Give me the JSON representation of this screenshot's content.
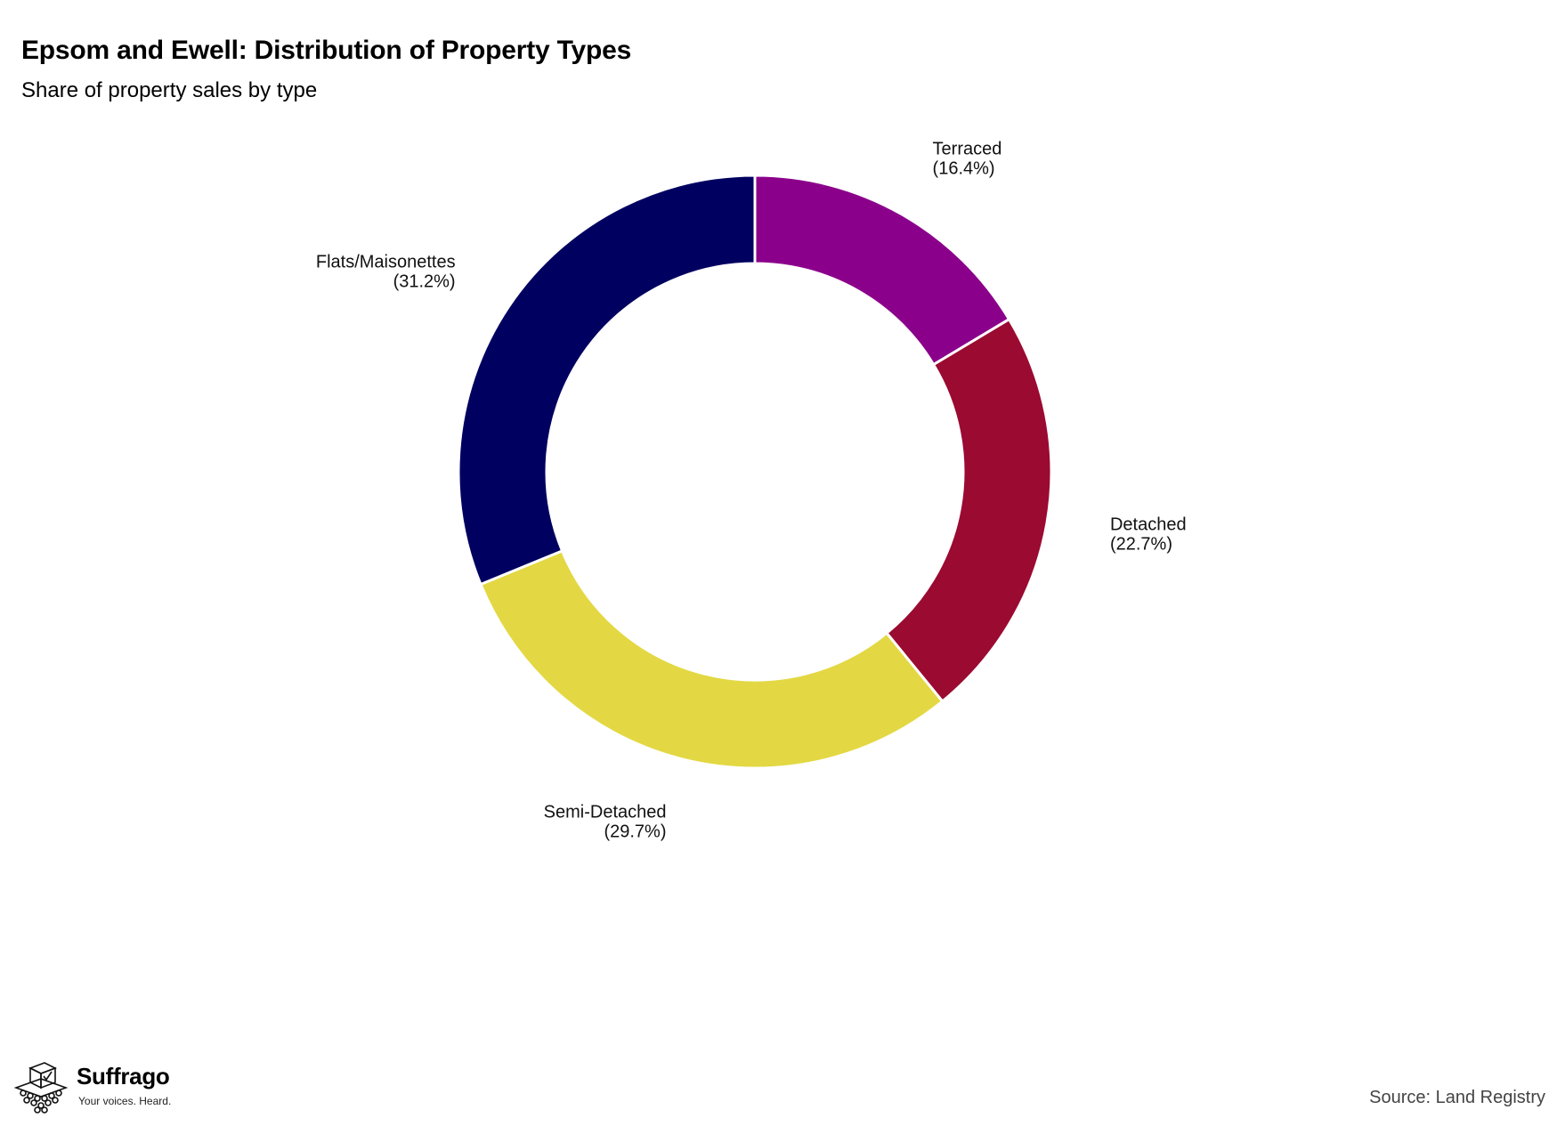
{
  "header": {
    "title": "Epsom and Ewell: Distribution of Property Types",
    "subtitle": "Share of property sales by type"
  },
  "footer": {
    "source": "Source: Land Registry",
    "brand_name": "Suffrago",
    "brand_tagline": "Your voices. Heard."
  },
  "chart_data": {
    "type": "pie",
    "variant": "donut",
    "title": "Epsom and Ewell: Distribution of Property Types",
    "subtitle": "Share of property sales by type",
    "slices": [
      {
        "label": "Terraced",
        "value": 16.4,
        "display": "(16.4%)",
        "color": "#8B008B"
      },
      {
        "label": "Detached",
        "value": 22.7,
        "display": "(22.7%)",
        "color": "#9B0A30"
      },
      {
        "label": "Semi-Detached",
        "value": 29.7,
        "display": "(29.7%)",
        "color": "#E3D843"
      },
      {
        "label": "Flats/Maisonettes",
        "value": 31.2,
        "display": "(31.2%)",
        "color": "#000060"
      }
    ],
    "start": "12 o'clock",
    "direction": "clockwise"
  }
}
